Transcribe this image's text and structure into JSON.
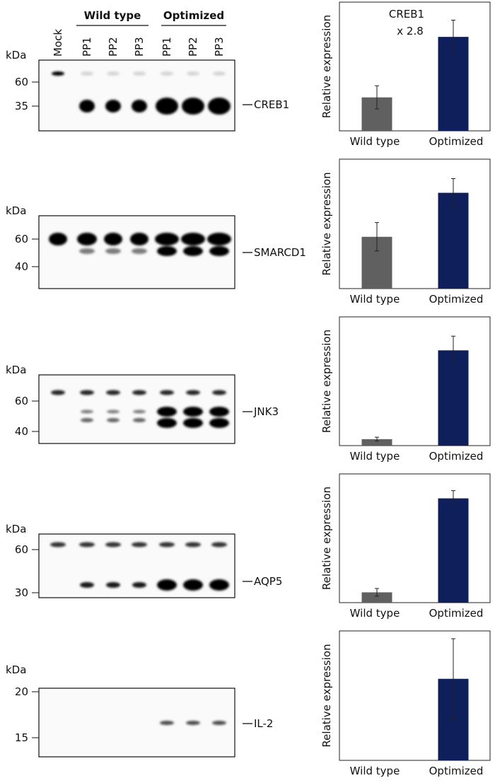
{
  "blot_header": {
    "groups": [
      "Wild type",
      "Optimized"
    ],
    "lanes": [
      "Mock",
      "PP1",
      "PP2",
      "PP3",
      "PP1",
      "PP2",
      "PP3"
    ]
  },
  "blots": [
    {
      "unit": "kDa",
      "markers": [
        60,
        35
      ],
      "protein": "CREB1"
    },
    {
      "unit": "kDa",
      "markers": [
        60,
        40
      ],
      "protein": "SMARCD1"
    },
    {
      "unit": "kDa",
      "markers": [
        60,
        40
      ],
      "protein": "JNK3"
    },
    {
      "unit": "kDa",
      "markers": [
        60,
        30
      ],
      "protein": "AQP5"
    },
    {
      "unit": "kDa",
      "markers": [
        20,
        15
      ],
      "protein": "IL-2"
    }
  ],
  "chart_data": [
    {
      "type": "bar",
      "ylabel": "Relative expression",
      "categories": [
        "Wild type",
        "Optimized"
      ],
      "values": [
        26,
        73
      ],
      "errors": [
        9,
        13
      ],
      "colors": [
        "#606060",
        "#0f1f5c"
      ],
      "ylim": [
        0,
        100
      ],
      "annotation": [
        "CREB1",
        "x 2.8"
      ]
    },
    {
      "type": "bar",
      "ylabel": "Relative expression",
      "categories": [
        "Wild type",
        "Optimized"
      ],
      "values": [
        40,
        74
      ],
      "errors": [
        11,
        11
      ],
      "colors": [
        "#606060",
        "#0f1f5c"
      ],
      "ylim": [
        0,
        100
      ]
    },
    {
      "type": "bar",
      "ylabel": "Relative expression",
      "categories": [
        "Wild type",
        "Optimized"
      ],
      "values": [
        5,
        74
      ],
      "errors": [
        1.5,
        11
      ],
      "colors": [
        "#606060",
        "#0f1f5c"
      ],
      "ylim": [
        0,
        100
      ]
    },
    {
      "type": "bar",
      "ylabel": "Relative expression",
      "categories": [
        "Wild type",
        "Optimized"
      ],
      "values": [
        8,
        81
      ],
      "errors": [
        3,
        6
      ],
      "colors": [
        "#606060",
        "#0f1f5c"
      ],
      "ylim": [
        0,
        100
      ]
    },
    {
      "type": "bar",
      "ylabel": "Relative expression",
      "categories": [
        "Wild type",
        "Optimized"
      ],
      "values": [
        0,
        63
      ],
      "errors": [
        0,
        31
      ],
      "colors": [
        "#606060",
        "#0f1f5c"
      ],
      "ylim": [
        0,
        100
      ]
    }
  ]
}
